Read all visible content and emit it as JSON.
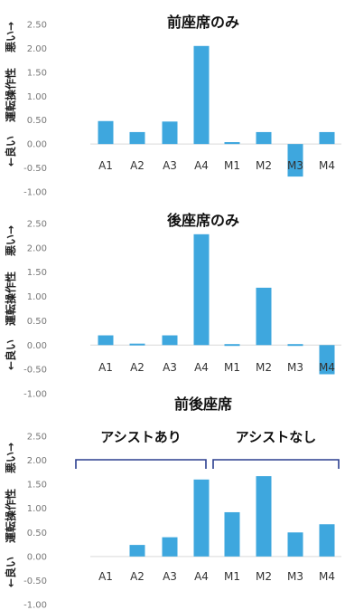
{
  "chart_data": [
    {
      "type": "bar",
      "title": "前座席のみ",
      "categories": [
        "A1",
        "A2",
        "A3",
        "A4",
        "M1",
        "M2",
        "M3",
        "M4"
      ],
      "values": [
        0.48,
        0.25,
        0.47,
        2.05,
        0.04,
        0.25,
        -0.68,
        0.25
      ],
      "ylim": [
        -1.0,
        2.5
      ],
      "yticks": [
        "2.50",
        "2.00",
        "1.50",
        "1.00",
        "0.50",
        "0.00",
        "-0.50",
        "-1.00"
      ],
      "ylabel": {
        "bad": "悪い→",
        "main": "運転操作性",
        "good": "←良い"
      },
      "bar_color": "#3ea7de"
    },
    {
      "type": "bar",
      "title": "後座席のみ",
      "categories": [
        "A1",
        "A2",
        "A3",
        "A4",
        "M1",
        "M2",
        "M3",
        "M4"
      ],
      "values": [
        0.2,
        0.03,
        0.2,
        2.28,
        0.02,
        1.18,
        0.02,
        -0.6
      ],
      "ylim": [
        -1.0,
        2.5
      ],
      "yticks": [
        "2.50",
        "2.00",
        "1.50",
        "1.00",
        "0.50",
        "0.00",
        "-0.50",
        "-1.00"
      ],
      "ylabel": {
        "bad": "悪い→",
        "main": "運転操作性",
        "good": "←良い"
      },
      "bar_color": "#3ea7de"
    },
    {
      "type": "bar",
      "title": "前後座席",
      "categories": [
        "A1",
        "A2",
        "A3",
        "A4",
        "M1",
        "M2",
        "M3",
        "M4"
      ],
      "values": [
        0,
        0.24,
        0.4,
        1.6,
        0.92,
        1.67,
        0.5,
        0.67
      ],
      "ylim": [
        -1.0,
        2.5
      ],
      "yticks": [
        "2.50",
        "2.00",
        "1.50",
        "1.00",
        "0.50",
        "0.00",
        "-0.50",
        "-1.00"
      ],
      "ylabel": {
        "bad": "悪い→",
        "main": "運転操作性",
        "good": "←良い"
      },
      "bar_color": "#3ea7de",
      "groups": [
        {
          "label": "アシストあり",
          "categories": [
            "A1",
            "A2",
            "A3",
            "A4"
          ]
        },
        {
          "label": "アシストなし",
          "categories": [
            "M1",
            "M2",
            "M3",
            "M4"
          ]
        }
      ]
    }
  ]
}
